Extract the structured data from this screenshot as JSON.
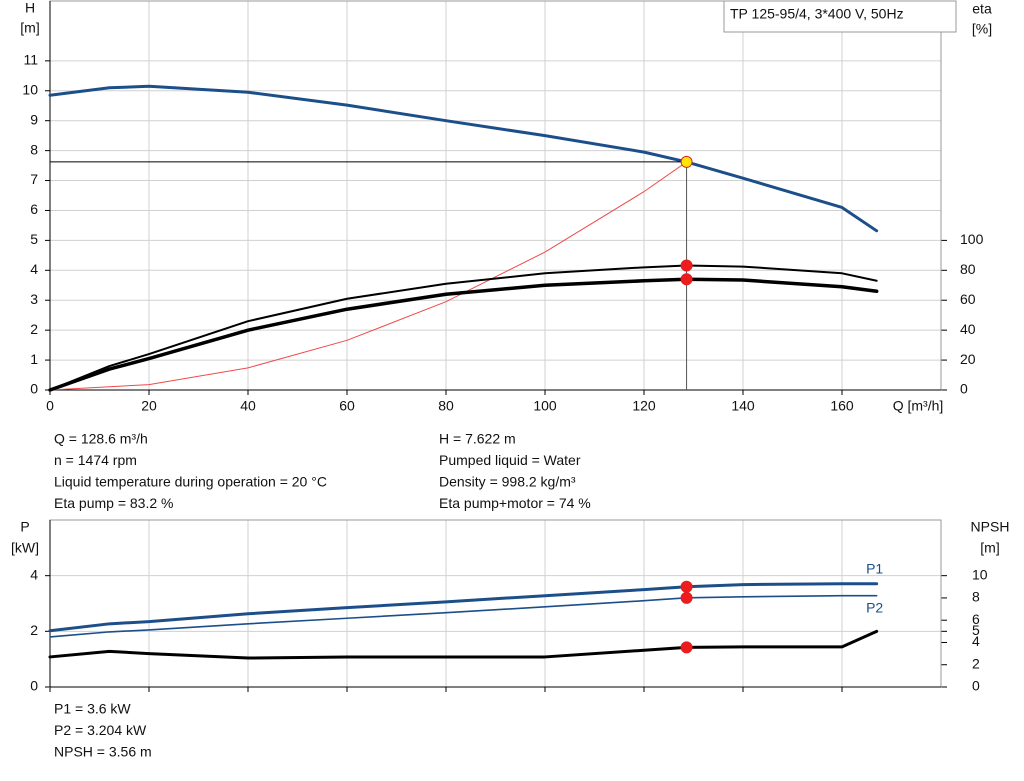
{
  "chart_data": [
    {
      "type": "line",
      "title": "TP 125-95/4, 3*400 V, 50Hz",
      "ylabel": "H",
      "yunit": "[m]",
      "y2label": "eta",
      "y2unit": "[%]",
      "xlabel": "Q [m³/h]",
      "xlim": [
        0,
        180
      ],
      "xticks": [
        0,
        20,
        40,
        60,
        80,
        100,
        120,
        140,
        160
      ],
      "ylim": [
        0,
        13
      ],
      "yticks": [
        0,
        1,
        2,
        3,
        4,
        5,
        6,
        7,
        8,
        9,
        10,
        11
      ],
      "y2lim": [
        0,
        260
      ],
      "y2ticks": [
        0,
        20,
        40,
        60,
        80,
        100
      ],
      "grid": true,
      "marker_index": 8,
      "duty_lines": true,
      "x": [
        0,
        12,
        20,
        40,
        60,
        80,
        100,
        120,
        128.6,
        140,
        160,
        167
      ],
      "series": [
        {
          "color": "#1c4f8a",
          "line_width": 3,
          "marker_color": "#ffe600",
          "values": [
            9.85,
            10.1,
            10.15,
            9.95,
            9.52,
            9.0,
            8.5,
            7.95,
            7.622,
            7.08,
            6.1,
            5.32
          ]
        },
        {
          "color": "#000000",
          "line_width": 2,
          "axis": "y2",
          "marker_color": "#ee1c1c",
          "values": [
            0,
            16,
            24,
            46,
            61,
            71,
            78,
            82,
            83.2,
            82.5,
            78,
            73
          ]
        },
        {
          "color": "#000000",
          "line_width": 3.5,
          "axis": "y2",
          "marker_color": "#ee1c1c",
          "values": [
            0,
            14,
            21,
            40,
            54,
            64,
            70,
            73,
            74,
            73.5,
            69,
            66
          ]
        }
      ],
      "system_curve": {
        "color": "#f04a4a",
        "x": [
          0,
          20,
          40,
          60,
          80,
          100,
          120,
          128.6
        ],
        "values": [
          0,
          0.18,
          0.74,
          1.66,
          2.95,
          4.61,
          6.63,
          7.622
        ]
      },
      "annotations": [
        "Q = 128.6 m³/h",
        "n = 1474 rpm",
        "Liquid temperature during operation = 20 °C",
        "Eta pump = 83.2 %",
        "H = 7.622 m",
        "Pumped liquid = Water",
        "Density = 998.2 kg/m³",
        "Eta pump+motor = 74 %"
      ]
    },
    {
      "type": "line",
      "ylabel": "P",
      "yunit": "[kW]",
      "y2label": "NPSH",
      "y2unit": "[m]",
      "xlim": [
        0,
        180
      ],
      "xticks": [
        0,
        20,
        40,
        60,
        80,
        100,
        120,
        140,
        160
      ],
      "show_xtick_labels": false,
      "ylim": [
        0,
        6
      ],
      "yticks": [
        0,
        2,
        4
      ],
      "y2lim": [
        0,
        15
      ],
      "y2ticks": [
        0,
        2,
        4,
        5,
        6,
        8,
        10
      ],
      "grid": true,
      "marker_index": 8,
      "x": [
        0,
        12,
        20,
        40,
        60,
        80,
        100,
        120,
        128.6,
        140,
        160,
        167
      ],
      "series": [
        {
          "name": "P1",
          "label_position": "above",
          "color": "#1c4f8a",
          "line_width": 3,
          "marker_color": "#ee1c1c",
          "values": [
            2.02,
            2.27,
            2.35,
            2.63,
            2.85,
            3.06,
            3.28,
            3.5,
            3.6,
            3.68,
            3.71,
            3.71
          ]
        },
        {
          "name": "P2",
          "label_position": "below",
          "color": "#1c4f8a",
          "line_width": 1.6,
          "marker_color": "#ee1c1c",
          "values": [
            1.8,
            1.98,
            2.05,
            2.27,
            2.47,
            2.67,
            2.88,
            3.1,
            3.204,
            3.24,
            3.28,
            3.28
          ]
        },
        {
          "color": "#000000",
          "line_width": 3,
          "axis": "y2",
          "marker_color": "#ee1c1c",
          "values": [
            2.7,
            3.2,
            3.0,
            2.6,
            2.7,
            2.7,
            2.7,
            3.3,
            3.56,
            3.6,
            3.6,
            5.0
          ]
        }
      ],
      "annotations": [
        "P1 = 3.6 kW",
        "P2 = 3.204 kW",
        "NPSH = 3.56 m"
      ]
    }
  ]
}
